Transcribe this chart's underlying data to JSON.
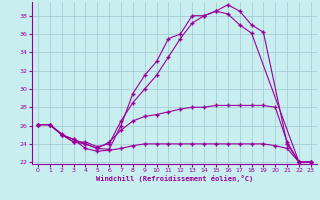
{
  "xlabel": "Windchill (Refroidissement éolien,°C)",
  "bg_color": "#c8eef0",
  "grid_color": "#a0c8d0",
  "line_color": "#990099",
  "xlim_min": -0.5,
  "xlim_max": 23.5,
  "ylim_min": 21.8,
  "ylim_max": 39.5,
  "xticks": [
    0,
    1,
    2,
    3,
    4,
    5,
    6,
    7,
    8,
    9,
    10,
    11,
    12,
    13,
    14,
    15,
    16,
    17,
    18,
    19,
    20,
    21,
    22,
    23
  ],
  "yticks": [
    22,
    24,
    26,
    28,
    30,
    32,
    34,
    36,
    38
  ],
  "lines": [
    {
      "x": [
        0,
        1,
        2,
        3,
        4,
        5,
        6,
        7,
        8,
        9,
        10,
        11,
        12,
        13,
        14,
        15,
        16,
        17,
        18,
        19,
        21,
        22,
        23
      ],
      "y": [
        26.1,
        26.1,
        25.0,
        24.2,
        24.0,
        23.5,
        23.4,
        26.0,
        29.5,
        31.5,
        33.0,
        35.5,
        36.0,
        38.0,
        38.0,
        38.5,
        39.2,
        38.5,
        37.0,
        36.2,
        24.0,
        22.0,
        22.0
      ]
    },
    {
      "x": [
        0,
        1,
        2,
        3,
        4,
        5,
        6,
        7,
        8,
        9,
        10,
        11,
        12,
        13,
        14,
        15,
        16,
        17,
        18,
        22,
        23
      ],
      "y": [
        26.1,
        26.1,
        25.1,
        24.2,
        24.2,
        23.7,
        24.0,
        26.5,
        28.5,
        30.0,
        31.5,
        33.5,
        35.5,
        37.2,
        38.0,
        38.5,
        38.2,
        37.0,
        36.1,
        22.0,
        22.0
      ]
    },
    {
      "x": [
        0,
        1,
        2,
        3,
        4,
        5,
        6,
        7,
        8,
        9,
        10,
        11,
        12,
        13,
        14,
        15,
        16,
        17,
        18,
        19,
        20,
        21,
        22,
        23
      ],
      "y": [
        26.1,
        26.1,
        25.0,
        24.5,
        24.0,
        23.5,
        24.2,
        25.5,
        26.5,
        27.0,
        27.2,
        27.5,
        27.8,
        28.0,
        28.0,
        28.2,
        28.2,
        28.2,
        28.2,
        28.2,
        28.0,
        24.2,
        22.0,
        22.0
      ]
    },
    {
      "x": [
        0,
        1,
        2,
        3,
        4,
        5,
        6,
        7,
        8,
        9,
        10,
        11,
        12,
        13,
        14,
        15,
        16,
        17,
        18,
        19,
        20,
        21,
        22,
        23
      ],
      "y": [
        26.1,
        26.1,
        25.0,
        24.5,
        23.5,
        23.2,
        23.3,
        23.5,
        23.8,
        24.0,
        24.0,
        24.0,
        24.0,
        24.0,
        24.0,
        24.0,
        24.0,
        24.0,
        24.0,
        24.0,
        23.8,
        23.5,
        22.0,
        22.0
      ]
    }
  ]
}
